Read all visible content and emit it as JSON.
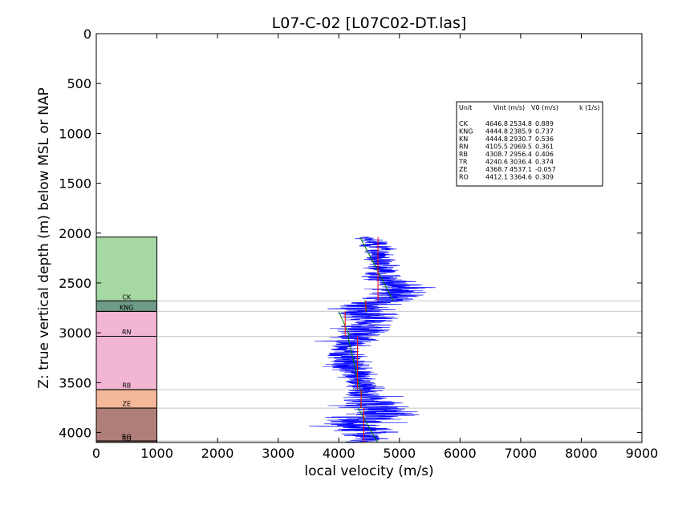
{
  "chart_data": {
    "type": "line",
    "title": "L07-C-02 [L07C02-DT.las]",
    "xlabel": "local velocity (m/s)",
    "ylabel": "Z: true vertical depth (m) below MSL or NAP",
    "xlim": [
      0,
      9000
    ],
    "ylim": [
      4100,
      0
    ],
    "y_inverted": true,
    "grid": false,
    "x_ticks": [
      "0",
      "1000",
      "2000",
      "3000",
      "4000",
      "5000",
      "6000",
      "7000",
      "8000",
      "9000"
    ],
    "y_ticks": [
      "0",
      "500",
      "1000",
      "1500",
      "2000",
      "2500",
      "3000",
      "3500",
      "4000"
    ],
    "x_tick_values": [
      0,
      1000,
      2000,
      3000,
      4000,
      5000,
      6000,
      7000,
      8000,
      9000
    ],
    "y_tick_values": [
      0,
      500,
      1000,
      1500,
      2000,
      2500,
      3000,
      3500,
      4000
    ],
    "colors": {
      "velocity_log": "#0000ff",
      "interval_velocity": "#ff0000",
      "fit_line": "#008000",
      "boundary_line": "#c8c8c8"
    },
    "strat_units": [
      {
        "code": "CK",
        "top": 2040,
        "base": 2680,
        "color": "#a6d8a4"
      },
      {
        "code": "KNG",
        "top": 2680,
        "base": 2785,
        "color": "#6f9a88"
      },
      {
        "code": "KN",
        "top": 2785,
        "base": 2786,
        "color": "#bde1a4"
      },
      {
        "code": "RN",
        "top": 2786,
        "base": 3035,
        "color": "#f2b6d3"
      },
      {
        "code": "RB",
        "top": 3035,
        "base": 3570,
        "color": "#f2b6d3"
      },
      {
        "code": "TR",
        "top": 3570,
        "base": 3571,
        "color": "#d9a3c8"
      },
      {
        "code": "ZE",
        "top": 3571,
        "base": 3755,
        "color": "#f4b89a"
      },
      {
        "code": "RO",
        "top": 3755,
        "base": 4085,
        "color": "#b07e78"
      },
      {
        "code": "",
        "top": 4085,
        "base": 4100,
        "color": "#8c6a6a"
      }
    ],
    "strat_labels": [
      {
        "text": "CK",
        "depth": 2665
      },
      {
        "text": "KNG",
        "depth": 2770
      },
      {
        "text": "RN",
        "depth": 3015
      },
      {
        "text": "RB",
        "depth": 3550
      },
      {
        "text": "ZE",
        "depth": 3735
      },
      {
        "text": "RO",
        "depth": 4065
      },
      {
        "text": "RD",
        "depth": 4085
      }
    ],
    "boundaries": [
      2680,
      2785,
      3035,
      3570,
      3755,
      4085
    ],
    "interval_velocity_segments": [
      {
        "v": 4646.8,
        "top": 2040,
        "base": 2680
      },
      {
        "v": 4444.8,
        "top": 2680,
        "base": 2785
      },
      {
        "v": 4105.5,
        "top": 2786,
        "base": 3035
      },
      {
        "v": 4308.7,
        "top": 3035,
        "base": 3570
      },
      {
        "v": 4368.7,
        "top": 3571,
        "base": 3755
      },
      {
        "v": 4412.1,
        "top": 3755,
        "base": 4100
      }
    ],
    "fit_segments": [
      {
        "v_top": 4350,
        "top": 2040,
        "v_base": 4900,
        "base": 2680
      },
      {
        "v_top": 4430,
        "top": 2680,
        "v_base": 4460,
        "base": 2785
      },
      {
        "v_top": 4000,
        "top": 2786,
        "v_base": 4180,
        "base": 3035
      },
      {
        "v_top": 4150,
        "top": 3035,
        "v_base": 4350,
        "base": 3570
      },
      {
        "v_top": 4380,
        "top": 3571,
        "v_base": 4360,
        "base": 3755
      },
      {
        "v_top": 4320,
        "top": 3755,
        "v_base": 4640,
        "base": 4100
      }
    ],
    "velocity_log_profile": [
      {
        "depth": 2040,
        "v_center": 4500,
        "v_spread": 250
      },
      {
        "depth": 2150,
        "v_center": 4650,
        "v_spread": 350
      },
      {
        "depth": 2300,
        "v_center": 4700,
        "v_spread": 350
      },
      {
        "depth": 2450,
        "v_center": 4750,
        "v_spread": 450
      },
      {
        "depth": 2550,
        "v_center": 5100,
        "v_spread": 600
      },
      {
        "depth": 2650,
        "v_center": 4900,
        "v_spread": 550
      },
      {
        "depth": 2750,
        "v_center": 4300,
        "v_spread": 700
      },
      {
        "depth": 2850,
        "v_center": 4500,
        "v_spread": 650
      },
      {
        "depth": 3000,
        "v_center": 4400,
        "v_spread": 600
      },
      {
        "depth": 3150,
        "v_center": 4100,
        "v_spread": 350
      },
      {
        "depth": 3300,
        "v_center": 4150,
        "v_spread": 500
      },
      {
        "depth": 3500,
        "v_center": 4400,
        "v_spread": 350
      },
      {
        "depth": 3650,
        "v_center": 4500,
        "v_spread": 500
      },
      {
        "depth": 3780,
        "v_center": 4700,
        "v_spread": 900
      },
      {
        "depth": 3900,
        "v_center": 4300,
        "v_spread": 900
      },
      {
        "depth": 4050,
        "v_center": 4500,
        "v_spread": 400
      },
      {
        "depth": 4100,
        "v_center": 4400,
        "v_spread": 250
      }
    ],
    "table": {
      "header": [
        "Unit",
        "Vint (m/s)",
        "V0 (m/s)",
        "k (1/s)"
      ],
      "rows": [
        [
          "CK",
          "4646.8",
          "2534.8",
          "0.889"
        ],
        [
          "KNG",
          "4444.8",
          "2385.9",
          "0.737"
        ],
        [
          "KN",
          "4444.8",
          "2930.7",
          "0.536"
        ],
        [
          "RN",
          "4105.5",
          "2969.5",
          "0.361"
        ],
        [
          "RB",
          "4308.7",
          "2956.4",
          "0.406"
        ],
        [
          "TR",
          "4240.6",
          "3036.4",
          "0.374"
        ],
        [
          "ZE",
          "4368.7",
          "4537.1",
          "-0.057"
        ],
        [
          "RO",
          "4412.1",
          "3364.6",
          "0.309"
        ]
      ]
    }
  }
}
